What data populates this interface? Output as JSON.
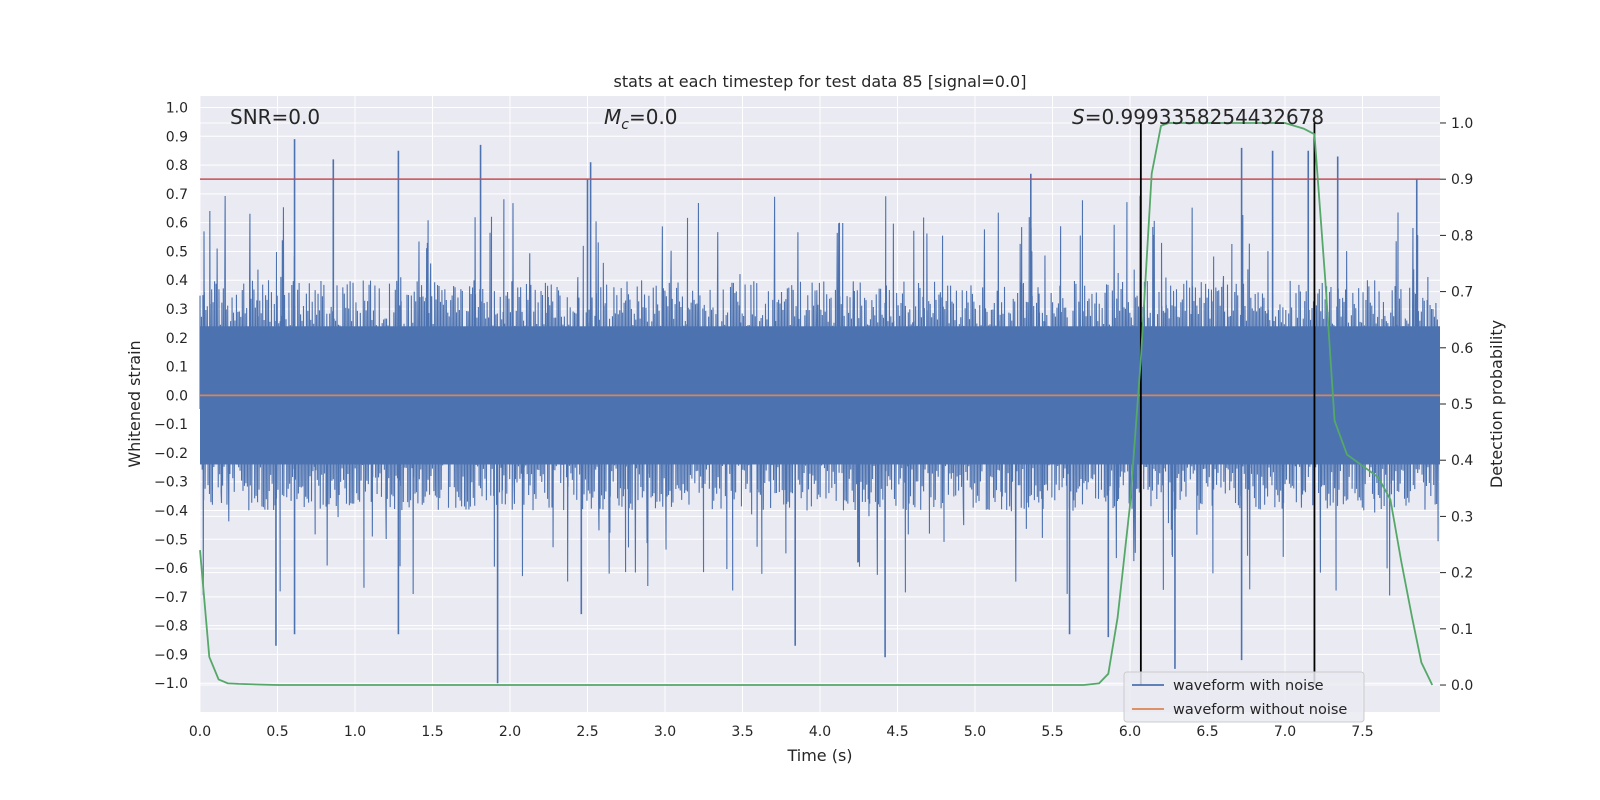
{
  "chart_data": {
    "type": "line",
    "title": "stats at each timestep for test data 85 [signal=0.0]",
    "xlabel": "Time (s)",
    "ylabel": "Whitened strain",
    "y2label": "Detection probability",
    "xlim": [
      0.0,
      8.0
    ],
    "ylim": [
      -1.1,
      1.04
    ],
    "y2lim": [
      -0.048,
      1.048
    ],
    "x_ticks": [
      "0.0",
      "0.5",
      "1.0",
      "1.5",
      "2.0",
      "2.5",
      "3.0",
      "3.5",
      "4.0",
      "4.5",
      "5.0",
      "5.5",
      "6.0",
      "6.5",
      "7.0",
      "7.5"
    ],
    "y_ticks": [
      "1.0",
      "0.9",
      "0.8",
      "0.7",
      "0.6",
      "0.5",
      "0.4",
      "0.3",
      "0.2",
      "0.1",
      "0.0",
      "−0.1",
      "−0.2",
      "−0.3",
      "−0.4",
      "−0.5",
      "−0.6",
      "−0.7",
      "−0.8",
      "−0.9",
      "−1.0"
    ],
    "y2_ticks": [
      "1.0",
      "0.9",
      "0.8",
      "0.7",
      "0.6",
      "0.5",
      "0.4",
      "0.3",
      "0.2",
      "0.1",
      "0.0"
    ],
    "grid": true,
    "legend_position": "lower-right",
    "annotations": {
      "snr": "SNR=0.0",
      "mc_symbol": "M",
      "mc_sub": "c",
      "mc_value": "=0.0",
      "s_symbol": "S",
      "s_value": "=0.9993358254432678"
    },
    "threshold": {
      "axis": "y2",
      "value": 0.9,
      "color": "#c44e52"
    },
    "detection_window": [
      6.07,
      7.19
    ],
    "series": [
      {
        "name": "waveform with noise",
        "color": "#4c72b0",
        "description": "whitened noisy strain sampled across 0–8 s",
        "amplitude_range": [
          -1.0,
          0.9
        ],
        "spikes": [
          {
            "x": 0.61,
            "y": 0.89
          },
          {
            "x": 0.86,
            "y": 0.82
          },
          {
            "x": 1.28,
            "y": 0.85
          },
          {
            "x": 1.81,
            "y": 0.87
          },
          {
            "x": 2.52,
            "y": 0.81
          },
          {
            "x": 2.5,
            "y": 0.75
          },
          {
            "x": 5.36,
            "y": 0.77
          },
          {
            "x": 6.72,
            "y": 0.86
          },
          {
            "x": 6.92,
            "y": 0.85
          },
          {
            "x": 7.15,
            "y": 0.85
          },
          {
            "x": 7.34,
            "y": 0.83
          },
          {
            "x": 7.85,
            "y": 0.75
          },
          {
            "x": 1.92,
            "y": -1.0
          },
          {
            "x": 0.49,
            "y": -0.87
          },
          {
            "x": 0.61,
            "y": -0.83
          },
          {
            "x": 1.28,
            "y": -0.83
          },
          {
            "x": 3.84,
            "y": -0.87
          },
          {
            "x": 4.42,
            "y": -0.91
          },
          {
            "x": 6.29,
            "y": -0.95
          },
          {
            "x": 6.72,
            "y": -0.92
          },
          {
            "x": 2.46,
            "y": -0.76
          },
          {
            "x": 5.61,
            "y": -0.83
          },
          {
            "x": 5.86,
            "y": -0.84
          }
        ]
      },
      {
        "name": "waveform without noise",
        "color": "#dd8452",
        "x": [
          0.0,
          8.0
        ],
        "y": [
          0.0,
          0.0
        ]
      },
      {
        "name": "detection probability",
        "axis": "y2",
        "color": "#55a868",
        "x": [
          0.0,
          0.06,
          0.12,
          0.18,
          0.25,
          0.5,
          1.0,
          2.0,
          3.0,
          4.0,
          5.0,
          5.7,
          5.8,
          5.86,
          5.92,
          6.0,
          6.07,
          6.14,
          6.2,
          6.25,
          6.5,
          7.0,
          7.12,
          7.19,
          7.26,
          7.32,
          7.4,
          7.5,
          7.6,
          7.68,
          7.75,
          7.82,
          7.88,
          7.95
        ],
        "y": [
          0.24,
          0.05,
          0.01,
          0.003,
          0.002,
          0.0,
          0.0,
          0.0,
          0.0,
          0.0,
          0.0,
          0.0,
          0.003,
          0.02,
          0.12,
          0.32,
          0.58,
          0.91,
          0.995,
          1.0,
          1.0,
          1.0,
          0.99,
          0.98,
          0.72,
          0.47,
          0.41,
          0.39,
          0.37,
          0.33,
          0.22,
          0.12,
          0.04,
          0.0
        ]
      },
      {
        "name": "detection markers",
        "color": "#000000",
        "x": [
          6.07,
          7.19
        ]
      }
    ]
  }
}
